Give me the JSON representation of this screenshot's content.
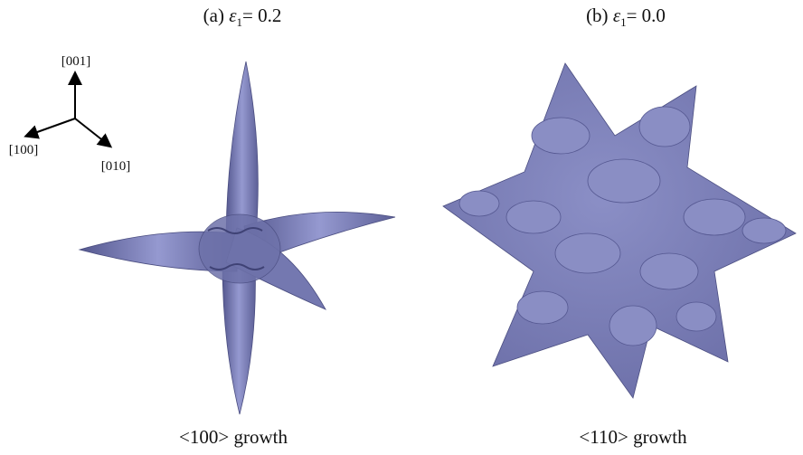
{
  "panels": [
    {
      "title": {
        "label": "(a) ",
        "symbol": "ε",
        "subscript": "1",
        "value": "= 0.2"
      },
      "caption": "<100> growth"
    },
    {
      "title": {
        "label": "(b) ",
        "symbol": "ε",
        "subscript": "1",
        "value": "= 0.0"
      },
      "caption": "<110> growth"
    }
  ],
  "axes": {
    "z": "[001]",
    "x": "[100]",
    "y": "[010]"
  }
}
